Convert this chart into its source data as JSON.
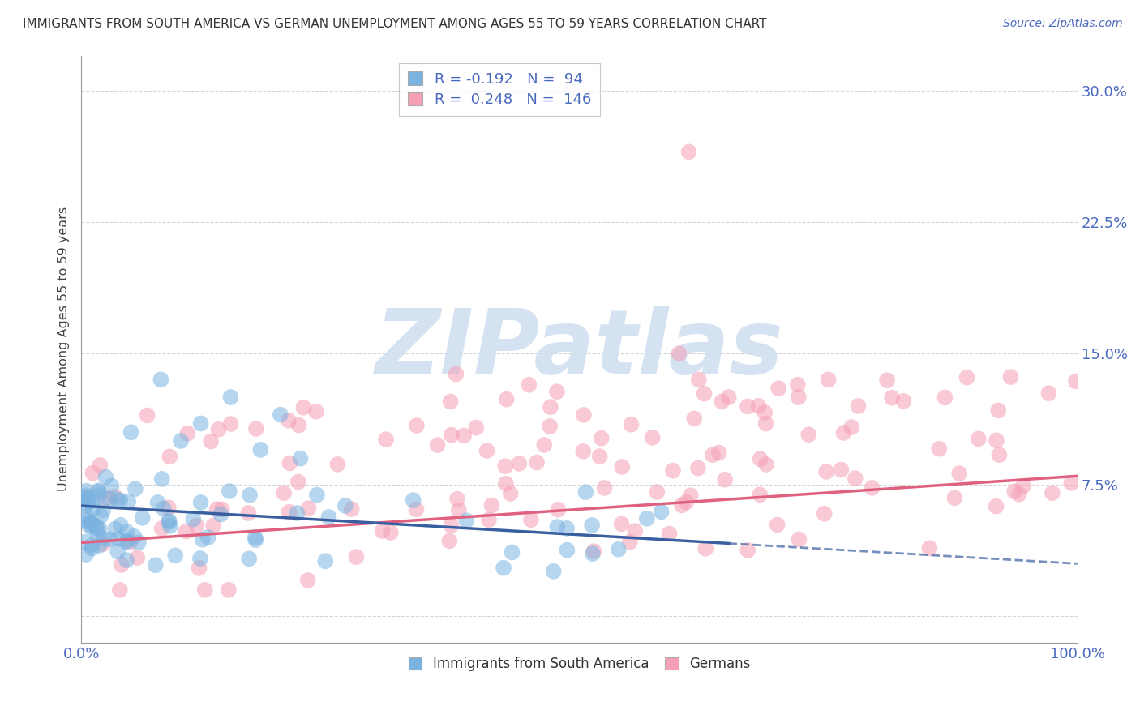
{
  "title": "IMMIGRANTS FROM SOUTH AMERICA VS GERMAN UNEMPLOYMENT AMONG AGES 55 TO 59 YEARS CORRELATION CHART",
  "source": "Source: ZipAtlas.com",
  "ylabel": "Unemployment Among Ages 55 to 59 years",
  "xlim": [
    0,
    100
  ],
  "ylim": [
    -1.5,
    32
  ],
  "ytick_vals": [
    0,
    7.5,
    15.0,
    22.5,
    30.0
  ],
  "yticklabels": [
    "",
    "7.5%",
    "15.0%",
    "22.5%",
    "30.0%"
  ],
  "xticklabels": [
    "0.0%",
    "100.0%"
  ],
  "legend_blue_R": "-0.192",
  "legend_blue_N": "94",
  "legend_pink_R": "0.248",
  "legend_pink_N": "146",
  "blue_color": "#7ab3e0",
  "pink_color": "#f5a0b5",
  "trend_blue_solid_color": "#3a5fa0",
  "trend_pink_color": "#e06080",
  "tick_label_color": "#4a6abf",
  "watermark": "ZIPatlas",
  "watermark_color": "#d0dff0",
  "grid_color": "#cccccc",
  "title_color": "#333333",
  "source_color": "#4a6abf"
}
